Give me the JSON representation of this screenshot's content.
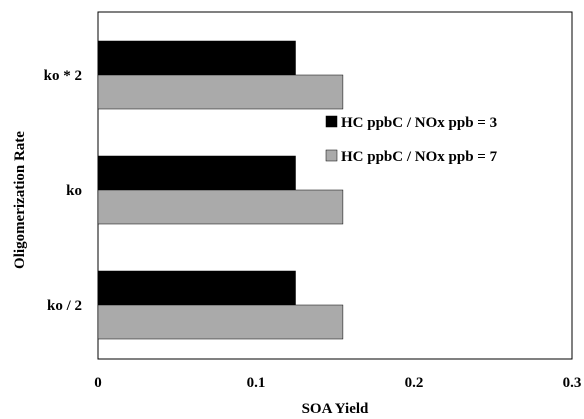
{
  "chart_data": {
    "type": "bar",
    "orientation": "horizontal",
    "categories": [
      "ko * 2",
      "ko",
      "ko / 2"
    ],
    "series": [
      {
        "name": "HC ppbC / NOx ppb = 3",
        "values": [
          0.125,
          0.125,
          0.125
        ],
        "color": "#000000"
      },
      {
        "name": "HC ppbC / NOx ppb = 7",
        "values": [
          0.155,
          0.155,
          0.155
        ],
        "color": "#aaaaaa"
      }
    ],
    "xlabel": "SOA Yield",
    "ylabel": "Oligomerization Rate",
    "xlim": [
      0,
      0.3
    ],
    "xticks": [
      "0",
      "0.1",
      "0.2",
      "0.3"
    ],
    "grid": false,
    "legend_position": "right"
  }
}
